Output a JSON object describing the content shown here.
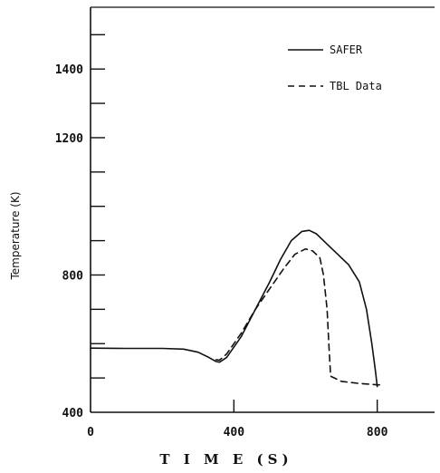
{
  "chart_data": {
    "type": "line",
    "xlabel": "T I M E  (S)",
    "ylabel": "Temperature (K)",
    "xlim": [
      0,
      960
    ],
    "ylim": [
      400,
      1580
    ],
    "x_ticks": [
      0,
      400,
      800
    ],
    "y_ticks": [
      400,
      800,
      1200,
      1400
    ],
    "grid": false,
    "legend_position": "top-right",
    "series": [
      {
        "name": "SAFER",
        "style": "solid",
        "color": "#111111",
        "x": [
          0,
          100,
          200,
          260,
          300,
          330,
          350,
          360,
          380,
          420,
          460,
          500,
          530,
          560,
          590,
          610,
          630,
          650,
          670,
          690,
          720,
          750,
          770,
          785,
          795,
          800
        ],
        "y": [
          587,
          586,
          586,
          584,
          575,
          560,
          548,
          546,
          560,
          620,
          700,
          780,
          845,
          900,
          927,
          930,
          920,
          900,
          880,
          860,
          830,
          780,
          700,
          600,
          520,
          475
        ]
      },
      {
        "name": "TBL Data",
        "style": "dashed",
        "color": "#111111",
        "x": [
          350,
          360,
          380,
          420,
          460,
          500,
          540,
          570,
          600,
          620,
          640,
          650,
          660,
          665,
          670,
          700,
          750,
          800,
          810
        ],
        "y": [
          553,
          552,
          570,
          630,
          700,
          760,
          820,
          860,
          876,
          870,
          850,
          800,
          700,
          600,
          505,
          490,
          484,
          480,
          480
        ]
      }
    ]
  }
}
